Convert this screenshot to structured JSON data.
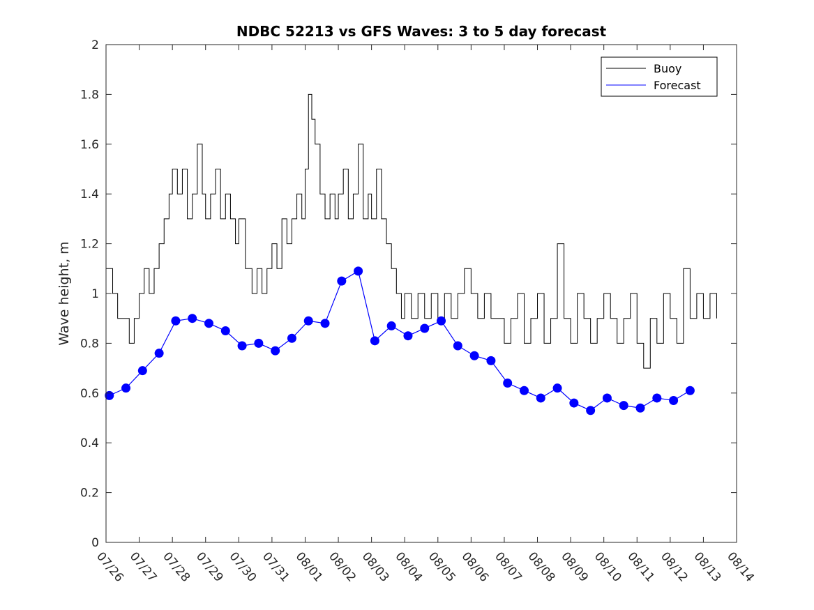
{
  "chart_data": {
    "type": "line",
    "title": "NDBC 52213 vs GFS Waves: 3 to 5 day forecast",
    "ylabel": "Wave height, m",
    "xlabel": "",
    "x_range_days": [
      "07/26",
      "08/14"
    ],
    "ylim": [
      0,
      2
    ],
    "y_ticks": [
      "0",
      "0.2",
      "0.4",
      "0.6",
      "0.8",
      "1",
      "1.2",
      "1.4",
      "1.6",
      "1.8",
      "2"
    ],
    "x_ticks": [
      "07/26",
      "07/27",
      "07/28",
      "07/29",
      "07/30",
      "07/31",
      "08/01",
      "08/02",
      "08/03",
      "08/04",
      "08/05",
      "08/06",
      "08/07",
      "08/08",
      "08/09",
      "08/10",
      "08/11",
      "08/12",
      "08/13",
      "08/14"
    ],
    "grid": false,
    "legend": {
      "position": "top-right",
      "entries": [
        "Buoy",
        "Forecast"
      ]
    },
    "colors": {
      "buoy": "#000000",
      "forecast": "#0000ff"
    },
    "series": [
      {
        "name": "Buoy",
        "x_day": [
          0.0,
          0.2,
          0.35,
          0.5,
          0.7,
          0.85,
          1.0,
          1.15,
          1.3,
          1.45,
          1.6,
          1.75,
          1.9,
          2.0,
          2.15,
          2.3,
          2.45,
          2.6,
          2.75,
          2.9,
          3.0,
          3.15,
          3.3,
          3.45,
          3.6,
          3.75,
          3.9,
          4.0,
          4.2,
          4.4,
          4.55,
          4.7,
          4.85,
          5.0,
          5.15,
          5.3,
          5.45,
          5.6,
          5.75,
          5.9,
          6.0,
          6.1,
          6.2,
          6.3,
          6.45,
          6.6,
          6.75,
          6.9,
          7.0,
          7.15,
          7.3,
          7.45,
          7.6,
          7.75,
          7.9,
          8.0,
          8.15,
          8.3,
          8.45,
          8.6,
          8.75,
          8.9,
          9.0,
          9.2,
          9.4,
          9.6,
          9.8,
          10.0,
          10.2,
          10.4,
          10.6,
          10.8,
          11.0,
          11.2,
          11.4,
          11.6,
          11.8,
          12.0,
          12.2,
          12.4,
          12.6,
          12.8,
          13.0,
          13.2,
          13.4,
          13.6,
          13.8,
          14.0,
          14.2,
          14.4,
          14.6,
          14.8,
          15.0,
          15.2,
          15.4,
          15.6,
          15.8,
          16.0,
          16.2,
          16.4,
          16.6,
          16.8,
          17.0,
          17.2,
          17.4,
          17.6,
          17.8,
          18.0,
          18.2,
          18.4
        ],
        "values": [
          1.1,
          1.0,
          0.9,
          0.9,
          0.8,
          0.9,
          1.0,
          1.1,
          1.0,
          1.1,
          1.2,
          1.3,
          1.4,
          1.5,
          1.4,
          1.5,
          1.3,
          1.4,
          1.6,
          1.4,
          1.3,
          1.4,
          1.5,
          1.3,
          1.4,
          1.3,
          1.2,
          1.3,
          1.1,
          1.0,
          1.1,
          1.0,
          1.1,
          1.2,
          1.1,
          1.3,
          1.2,
          1.3,
          1.4,
          1.3,
          1.5,
          1.8,
          1.7,
          1.6,
          1.4,
          1.3,
          1.4,
          1.3,
          1.4,
          1.5,
          1.3,
          1.4,
          1.6,
          1.3,
          1.4,
          1.3,
          1.5,
          1.3,
          1.2,
          1.1,
          1.0,
          0.9,
          1.0,
          0.9,
          1.0,
          0.9,
          1.0,
          0.9,
          1.0,
          0.9,
          1.0,
          1.1,
          1.0,
          0.9,
          1.0,
          0.9,
          0.9,
          0.8,
          0.9,
          1.0,
          0.8,
          0.9,
          1.0,
          0.8,
          0.9,
          1.2,
          0.9,
          0.8,
          1.0,
          0.9,
          0.8,
          0.9,
          1.0,
          0.9,
          0.8,
          0.9,
          1.0,
          0.8,
          0.7,
          0.9,
          0.8,
          1.0,
          0.9,
          0.8,
          1.1,
          0.9,
          1.0,
          0.9,
          1.0,
          0.9
        ]
      },
      {
        "name": "Forecast",
        "x_day": [
          0.1,
          0.6,
          1.1,
          1.6,
          2.1,
          2.6,
          3.1,
          3.6,
          4.1,
          4.6,
          5.1,
          5.6,
          6.1,
          6.6,
          7.1,
          7.6,
          8.1,
          8.6,
          9.1,
          9.6,
          10.1,
          10.6,
          11.1,
          11.6,
          12.1,
          12.6,
          13.1,
          13.6,
          14.1,
          14.6,
          15.1,
          15.6,
          16.1,
          16.6,
          17.1,
          17.6
        ],
        "values": [
          0.59,
          0.62,
          0.69,
          0.76,
          0.89,
          0.9,
          0.88,
          0.85,
          0.79,
          0.8,
          0.77,
          0.82,
          0.89,
          0.88,
          1.05,
          1.09,
          0.81,
          0.87,
          0.83,
          0.86,
          0.89,
          0.79,
          0.75,
          0.73,
          0.64,
          0.61,
          0.58,
          0.62,
          0.56,
          0.53,
          0.58,
          0.55,
          0.54,
          0.58,
          0.57,
          0.61
        ]
      }
    ]
  }
}
